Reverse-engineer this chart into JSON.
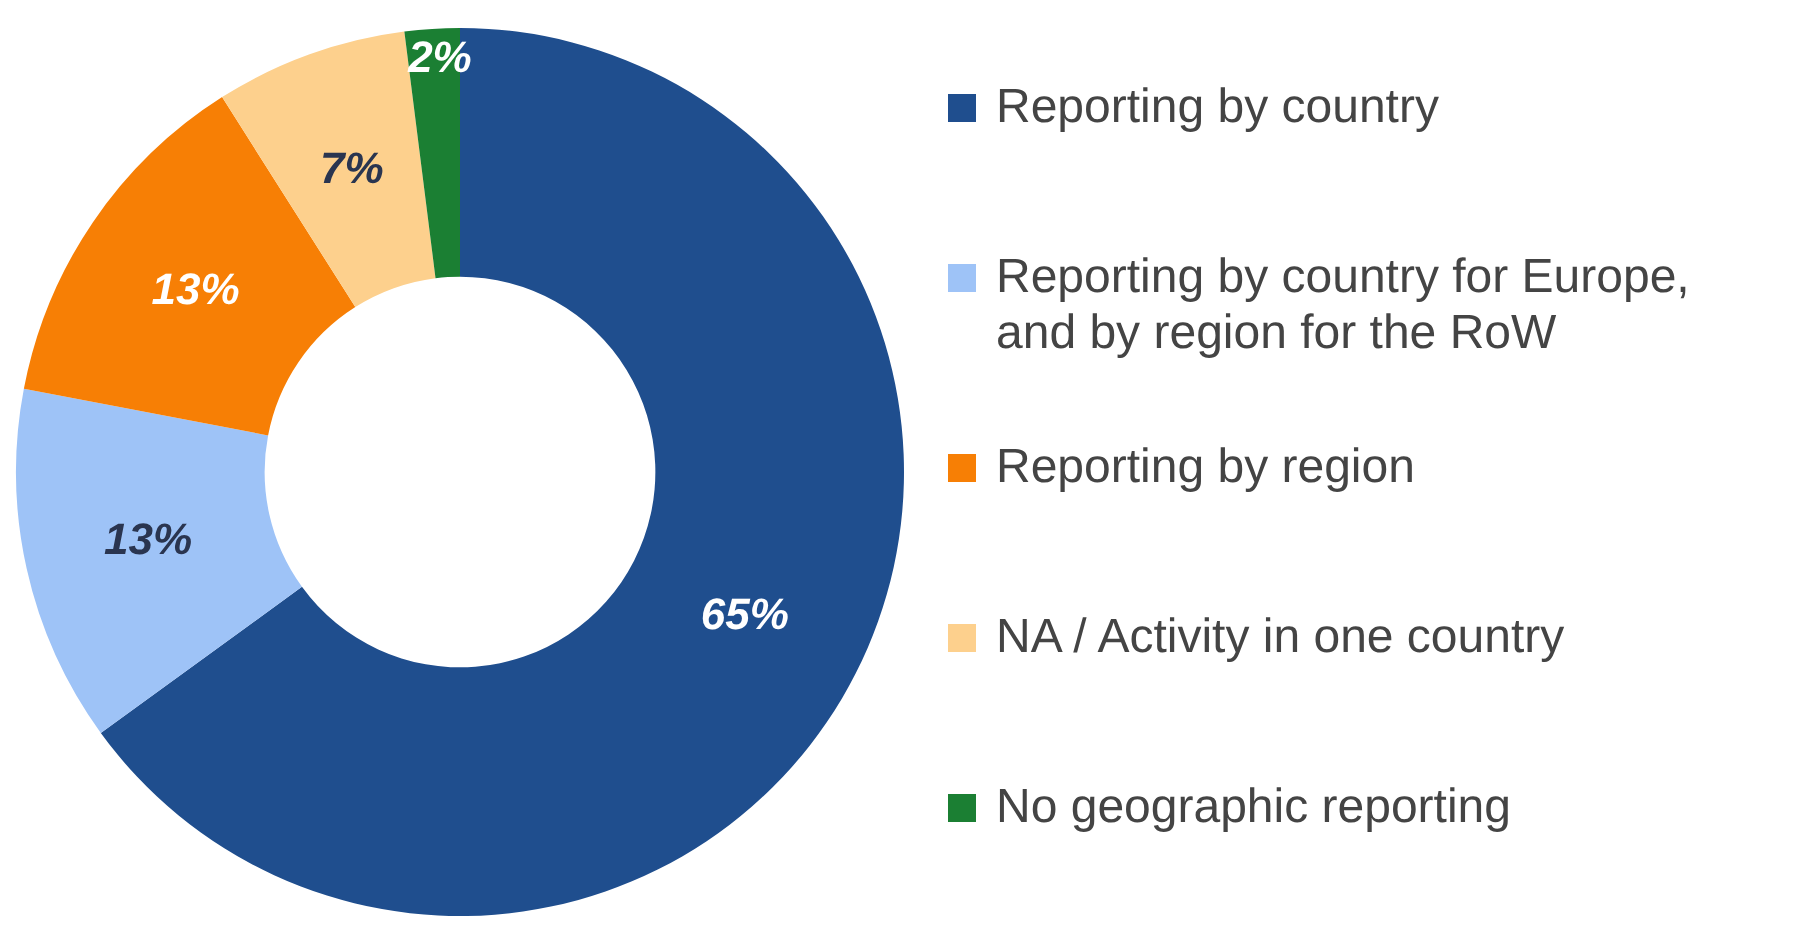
{
  "chart_data": {
    "type": "donut",
    "categories": [
      "Reporting by country",
      "Reporting by country for Europe, and by region for the RoW",
      "Reporting by region",
      "NA / Activity in one country",
      "No geographic reporting"
    ],
    "values": [
      65,
      13,
      13,
      7,
      2
    ],
    "colors": [
      "#1f4e8e",
      "#9ec3f7",
      "#f77f05",
      "#fdd08d",
      "#1b7f33"
    ],
    "value_labels": [
      "65%",
      "13%",
      "13%",
      "7%",
      "2%"
    ],
    "legend": "right"
  }
}
